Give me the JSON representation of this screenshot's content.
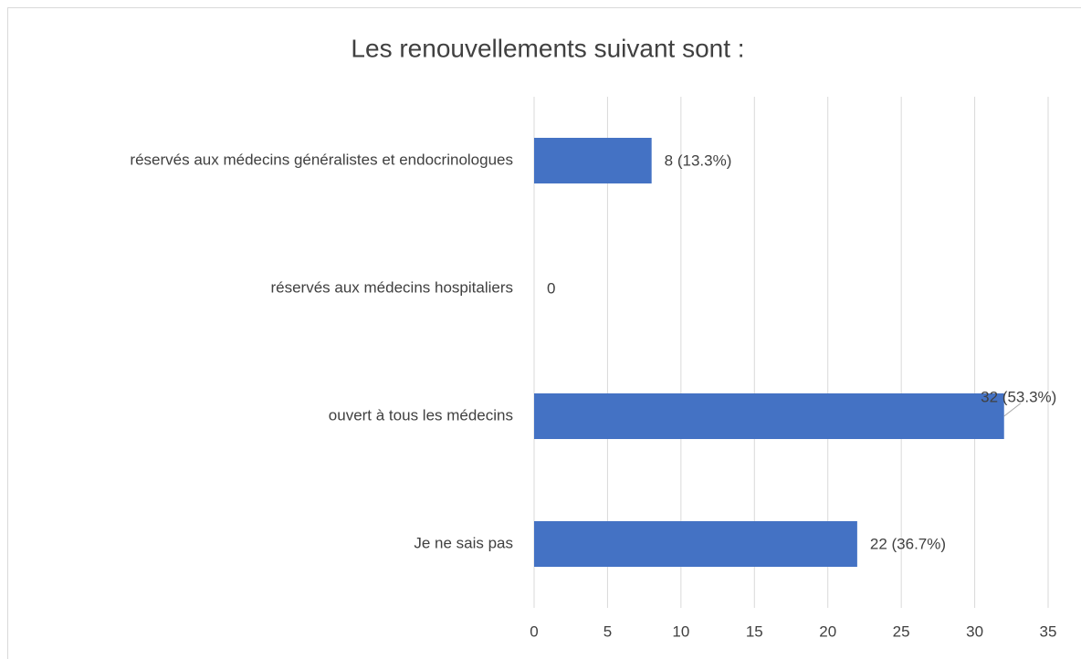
{
  "chart_data": {
    "type": "bar",
    "orientation": "horizontal",
    "title": "Les renouvellements suivant sont :",
    "categories": [
      "réservés aux médecins généralistes et endocrinologues",
      "réservés aux médecins hospitaliers",
      "ouvert à tous les médecins",
      "Je ne sais pas"
    ],
    "values": [
      8,
      0,
      32,
      22
    ],
    "value_labels": [
      "8 (13.3%)",
      "0",
      "32 (53.3%)",
      "22 (36.7%)"
    ],
    "color": "#4472c4",
    "xlim": [
      0,
      35
    ],
    "xticks": [
      0,
      5,
      10,
      15,
      20,
      25,
      30,
      35
    ],
    "grid": true
  }
}
